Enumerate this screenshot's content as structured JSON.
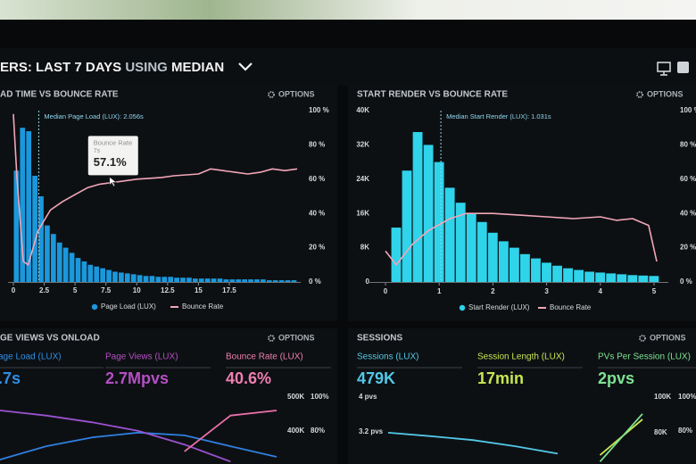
{
  "header": {
    "prefix": "ERS:",
    "range": "LAST 7 DAYS",
    "using": "USING",
    "method": "MEDIAN"
  },
  "panels": [
    {
      "title": "AD TIME VS BOUNCE RATE",
      "options": "OPTIONS",
      "chart": {
        "type": "histogram",
        "xlim": [
          0,
          23
        ],
        "xticks": [
          0,
          2.5,
          5,
          7.5,
          10,
          12.5,
          15,
          17.5
        ],
        "ylim": [
          0,
          100
        ],
        "y2lim": [
          0,
          100
        ],
        "y2ticks": [
          {
            "value": 0,
            "label": "0 %"
          },
          {
            "value": 20,
            "label": "20 %"
          },
          {
            "value": 40,
            "label": "40 %"
          },
          {
            "value": 60,
            "label": "60 %"
          },
          {
            "value": 80,
            "label": "80 %"
          },
          {
            "value": 100,
            "label": "100 %"
          }
        ],
        "bars": {
          "name": "Page Load (LUX)",
          "color": "#1b98dc",
          "bins": [
            0,
            0.5,
            1,
            1.5,
            2,
            2.5,
            3,
            3.5,
            4,
            4.5,
            5,
            5.5,
            6,
            6.5,
            7,
            7.5,
            8,
            8.5,
            9,
            9.5,
            10,
            10.5,
            11,
            11.5,
            12,
            12.5,
            13,
            13.5,
            14,
            14.5,
            15,
            15.5,
            16,
            16.5,
            17,
            17.5,
            18,
            18.5,
            19,
            19.5,
            20,
            20.5,
            21,
            21.5,
            22,
            22.5,
            23
          ],
          "counts": [
            65,
            90,
            88,
            62,
            50,
            33,
            28,
            23,
            20,
            17,
            14,
            12,
            10,
            9,
            8,
            7,
            6,
            5.5,
            5,
            4.5,
            4,
            3.5,
            3.5,
            3,
            3,
            3,
            2.5,
            2.5,
            2.5,
            2,
            2,
            2,
            2,
            2,
            1.5,
            1.5,
            1.5,
            1.5,
            1.5,
            1.5,
            1.5,
            1,
            1,
            1,
            1,
            1
          ]
        },
        "series": [
          {
            "name": "Bounce Rate",
            "color": "#f2a7b8",
            "axis": "y2",
            "x": [
              0,
              0.3,
              0.8,
              1.2,
              2,
              3,
              4,
              5,
              6,
              7,
              8,
              10,
              12,
              13,
              15,
              16,
              17,
              18,
              19,
              20,
              21,
              22,
              23
            ],
            "values": [
              98,
              60,
              12,
              10,
              30,
              42,
              47,
              51,
              55,
              57.1,
              58,
              60,
              61,
              62,
              63,
              66,
              65,
              64,
              63,
              64,
              66,
              65,
              66
            ]
          }
        ],
        "annotation": {
          "text": "Median Page Load (LUX): 2.056s",
          "x": 2.056
        },
        "tooltip": {
          "title": "Bounce Rate",
          "x_label": "7s",
          "x": 7,
          "value_label": "57.1%",
          "value": 57.1
        }
      }
    },
    {
      "title": "START RENDER VS BOUNCE RATE",
      "options": "OPTIONS",
      "chart": {
        "type": "histogram",
        "xlim": [
          -0.2,
          5.2
        ],
        "xticks": [
          0,
          1,
          2,
          3,
          4,
          5
        ],
        "ylim": [
          0,
          40000
        ],
        "yticks": [
          0,
          {
            "value": 8000,
            "label": "8K"
          },
          {
            "value": 16000,
            "label": "16K"
          },
          {
            "value": 24000,
            "label": "24K"
          },
          {
            "value": 32000,
            "label": "32K"
          },
          {
            "value": 40000,
            "label": "40K"
          }
        ],
        "y2lim": [
          0,
          100
        ],
        "y2ticks": [
          {
            "value": 0,
            "label": "0 %"
          },
          {
            "value": 20,
            "label": "20 %"
          },
          {
            "value": 40,
            "label": "40 %"
          },
          {
            "value": 60,
            "label": "60 %"
          },
          {
            "value": 80,
            "label": "80 %"
          },
          {
            "value": 100,
            "label": "100 %"
          }
        ],
        "bars": {
          "name": "Start Render (LUX)",
          "color": "#2fd3ea",
          "bins": [
            0.1,
            0.3,
            0.5,
            0.7,
            0.9,
            1.1,
            1.3,
            1.5,
            1.7,
            1.9,
            2.1,
            2.3,
            2.5,
            2.7,
            2.9,
            3.1,
            3.3,
            3.5,
            3.7,
            3.9,
            4.1,
            4.3,
            4.5,
            4.7,
            4.9,
            5.1
          ],
          "counts": [
            12700,
            26000,
            35000,
            32000,
            28000,
            22000,
            18500,
            16000,
            14000,
            11500,
            9500,
            8000,
            6500,
            5500,
            4500,
            3800,
            3200,
            2800,
            2400,
            2200,
            2000,
            1800,
            1600,
            1500,
            1400
          ]
        },
        "series": [
          {
            "name": "Bounce Rate",
            "color": "#f2a7b8",
            "axis": "y2",
            "x": [
              0,
              0.2,
              0.5,
              0.8,
              1.2,
              1.5,
              2,
              2.5,
              3,
              3.5,
              4,
              4.3,
              4.6,
              4.9,
              5.05
            ],
            "values": [
              18,
              10,
              22,
              30,
              37,
              40,
              40,
              39,
              38,
              37,
              38,
              36,
              37,
              33,
              12
            ]
          }
        ],
        "annotation": {
          "text": "Median Start Render (LUX): 1.031s",
          "x": 1.031
        }
      }
    },
    {
      "title": "GE VIEWS VS ONLOAD",
      "options": "OPTIONS",
      "metrics": [
        {
          "label": "age Load (LUX)",
          "value": ".7s",
          "color": "#2f8fe6"
        },
        {
          "label": "Page Views (LUX)",
          "value": "2.7Mpvs",
          "color": "#b44fc4"
        },
        {
          "label": "Bounce Rate (LUX)",
          "value": "40.6%",
          "color": "#ef7fb0"
        }
      ],
      "chart": {
        "type": "line",
        "ylim": [
          290000,
          520000
        ],
        "yticks": [
          {
            "value": 400000,
            "label": "400K"
          },
          {
            "value": 500000,
            "label": "500K"
          }
        ],
        "y2lim": [
          58,
          104
        ],
        "y2ticks": [
          {
            "value": 80,
            "label": "80%"
          },
          {
            "value": 100,
            "label": "100%"
          }
        ],
        "series": [
          {
            "color": "#2f7fe0",
            "axis": "y",
            "values": [
              316000,
              355000,
              381000,
              395000,
              387000,
              355000,
              324000
            ]
          },
          {
            "color": "#9a52cf",
            "axis": "y",
            "values": [
              460000,
              445000,
              425000,
              400000,
              360000,
              310000,
              null
            ]
          },
          {
            "color": "#e96fa9",
            "axis": "y2",
            "values": [
              null,
              null,
              null,
              null,
              68,
              89,
              92
            ]
          }
        ]
      }
    },
    {
      "title": "SESSIONS",
      "options": "OPTIONS",
      "metrics": [
        {
          "label": "Sessions (LUX)",
          "value": "479K",
          "color": "#52c8e8"
        },
        {
          "label": "Session Length (LUX)",
          "value": "17min",
          "color": "#c9e654"
        },
        {
          "label": "PVs Per Session (LUX)",
          "value": "2pvs",
          "color": "#7de392"
        }
      ],
      "chart": {
        "type": "line",
        "ylim": [
          2.36,
          4.16
        ],
        "yticks": [
          {
            "value": 3.2,
            "label": "3.2 pvs"
          },
          {
            "value": 4,
            "label": "4 pvs"
          }
        ],
        "y2lim": [
          60000,
          104000
        ],
        "y2ticks": [
          {
            "value": 80000,
            "label": "80K"
          },
          {
            "value": 100000,
            "label": "100K"
          }
        ],
        "y3lim": [
          58,
          104
        ],
        "y3ticks": [
          {
            "value": 80,
            "label": "80%"
          },
          {
            "value": 100,
            "label": "100%"
          }
        ],
        "series": [
          {
            "color": "#52c8e8",
            "axis": "y",
            "values": [
              3.18,
              3.1,
              3.01,
              2.87,
              2.7,
              null,
              null
            ]
          },
          {
            "color": "#c9e654",
            "axis": "y2",
            "values": [
              null,
              null,
              null,
              null,
              null,
              67500,
              87500
            ]
          },
          {
            "color": "#7de392",
            "axis": "y3",
            "values": [
              null,
              null,
              null,
              null,
              null,
              62,
              90
            ]
          }
        ]
      }
    }
  ]
}
